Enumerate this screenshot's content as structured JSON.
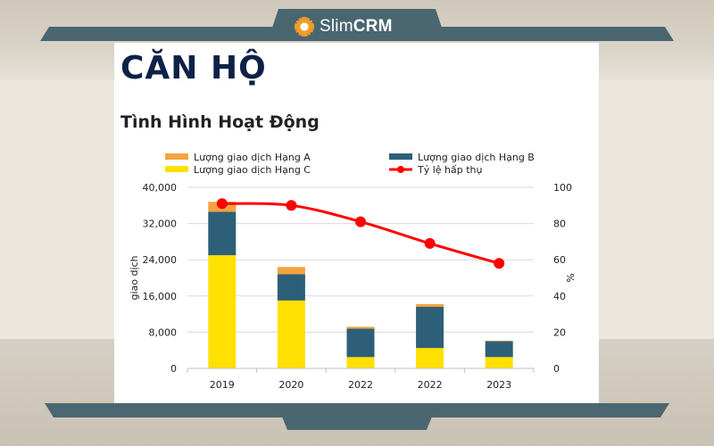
{
  "brand": {
    "name_light": "Slim",
    "name_bold": "CRM"
  },
  "page": {
    "title": "CĂN HỘ"
  },
  "chart_data": {
    "type": "bar",
    "title": "Tình Hình Hoạt Động",
    "categories": [
      "2019",
      "2020",
      "2022",
      "2022",
      "2023"
    ],
    "stacked": true,
    "series": [
      {
        "name": "Lượng giao dịch Hạng C",
        "type": "bar",
        "color": "#ffe000",
        "values": [
          25000,
          15000,
          2500,
          4500,
          2500
        ]
      },
      {
        "name": "Lượng giao dịch Hạng B",
        "type": "bar",
        "color": "#2e5f78",
        "values": [
          9600,
          5800,
          6300,
          9100,
          3500
        ]
      },
      {
        "name": "Lượng giao dịch Hạng A",
        "type": "bar",
        "color": "#f4a340",
        "values": [
          2200,
          1600,
          400,
          600,
          100
        ]
      },
      {
        "name": "Tỷ lệ hấp thụ",
        "type": "line",
        "axis": "right",
        "color": "#ff0000",
        "values": [
          91,
          90,
          81,
          69,
          58
        ]
      }
    ],
    "ylabel": "giao dịch",
    "ylim": [
      0,
      40000
    ],
    "yticks": [
      "0",
      "8,000",
      "16,000",
      "24,000",
      "32,000",
      "40,000"
    ],
    "y2label": "%",
    "y2lim": [
      0,
      100
    ],
    "y2ticks": [
      "0",
      "20",
      "40",
      "60",
      "80",
      "100"
    ],
    "legend": [
      {
        "label": "Lượng giao dịch Hạng A",
        "marker": "bar",
        "color": "#f4a340"
      },
      {
        "label": "Lượng giao dịch Hạng B",
        "marker": "bar",
        "color": "#2e5f78"
      },
      {
        "label": "Lượng giao dịch Hạng C",
        "marker": "bar",
        "color": "#ffe000"
      },
      {
        "label": "Tỷ lệ hấp thụ",
        "marker": "line",
        "color": "#ff0000"
      }
    ],
    "legend_position": "top",
    "grid": true
  }
}
